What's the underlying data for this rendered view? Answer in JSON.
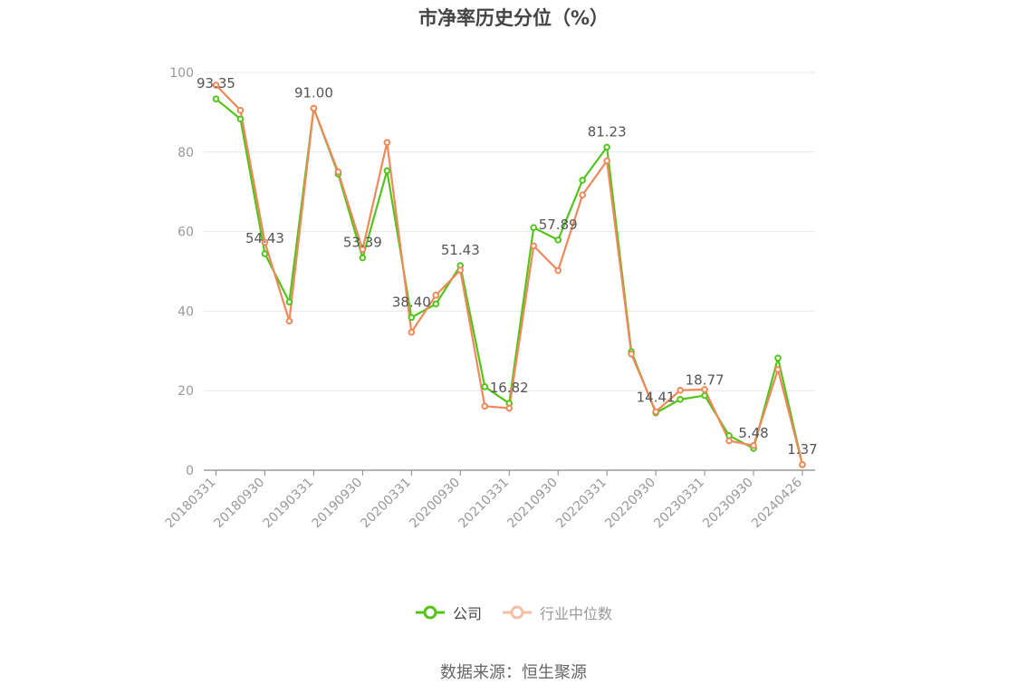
{
  "chart_data": {
    "type": "line",
    "title": "市净率历史分位（%）",
    "ylim": [
      0,
      100
    ],
    "y_ticks": [
      "0",
      "20",
      "40",
      "60",
      "80",
      "100"
    ],
    "x": [
      "20180331",
      "20180630",
      "20180930",
      "20181231",
      "20190331",
      "20190630",
      "20190930",
      "20191231",
      "20200331",
      "20200630",
      "20200930",
      "20201231",
      "20210331",
      "20210630",
      "20210930",
      "20211231",
      "20220331",
      "20220630",
      "20220930",
      "20221231",
      "20230331",
      "20230630",
      "20230930",
      "20231231",
      "20240426"
    ],
    "x_tick_labels": [
      "20180331",
      "20180930",
      "20190331",
      "20190930",
      "20200331",
      "20200930",
      "20210331",
      "20210930",
      "20220331",
      "20220930",
      "20230331",
      "20230930",
      "20240426"
    ],
    "grid": true,
    "legend_position": "bottom",
    "series": [
      {
        "name": "公司",
        "color": "#52c41a",
        "values": [
          93.35,
          88.3,
          54.43,
          42.3,
          91.0,
          74.5,
          53.39,
          75.3,
          38.4,
          41.8,
          51.43,
          21.0,
          16.82,
          61.0,
          57.89,
          72.9,
          81.23,
          29.8,
          14.41,
          17.8,
          18.77,
          8.7,
          5.48,
          28.2,
          1.37
        ],
        "labels": [
          "93.35",
          "",
          "54.43",
          "",
          "91.00",
          "",
          "53.39",
          "",
          "38.40",
          "",
          "51.43",
          "",
          "16.82",
          "",
          "57.89",
          "",
          "81.23",
          "",
          "14.41",
          "",
          "18.77",
          "",
          "5.48",
          "",
          "1.37"
        ]
      },
      {
        "name": "行业中位数",
        "color": "#f0885a",
        "values": [
          96.8,
          90.5,
          57.3,
          37.5,
          91.0,
          75.0,
          55.5,
          82.4,
          34.7,
          44.0,
          50.3,
          16.1,
          15.6,
          56.4,
          50.2,
          69.2,
          77.8,
          29.2,
          14.7,
          20.1,
          20.3,
          7.4,
          6.2,
          25.3,
          1.4
        ]
      }
    ]
  },
  "source_text": "数据来源：恒生聚源"
}
